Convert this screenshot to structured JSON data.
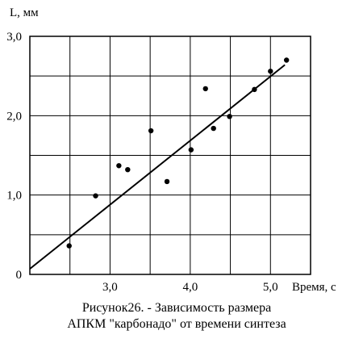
{
  "chart_data": {
    "type": "scatter",
    "title": "",
    "xlabel": "Время, с",
    "ylabel": "L, мм",
    "xlim": [
      2.0,
      5.5
    ],
    "ylim": [
      0.0,
      3.0
    ],
    "x_gridlines": [
      2.5,
      3.0,
      3.5,
      4.0,
      4.5,
      5.0
    ],
    "y_gridlines": [
      0.5,
      1.0,
      1.5,
      2.0,
      2.5
    ],
    "x_ticks": [
      {
        "value": 3.0,
        "label": "3,0"
      },
      {
        "value": 4.0,
        "label": "4,0"
      },
      {
        "value": 5.0,
        "label": "5,0"
      }
    ],
    "y_ticks": [
      {
        "value": 0.0,
        "label": "0"
      },
      {
        "value": 1.0,
        "label": "1,0"
      },
      {
        "value": 2.0,
        "label": "2,0"
      },
      {
        "value": 3.0,
        "label": "3,0"
      }
    ],
    "grid": true,
    "points": [
      {
        "x": 2.49,
        "y": 0.36
      },
      {
        "x": 2.82,
        "y": 0.99
      },
      {
        "x": 3.11,
        "y": 1.37
      },
      {
        "x": 3.22,
        "y": 1.32
      },
      {
        "x": 3.51,
        "y": 1.81
      },
      {
        "x": 3.71,
        "y": 1.17
      },
      {
        "x": 4.01,
        "y": 1.57
      },
      {
        "x": 4.19,
        "y": 2.34
      },
      {
        "x": 4.29,
        "y": 1.84
      },
      {
        "x": 4.49,
        "y": 1.99
      },
      {
        "x": 4.8,
        "y": 2.33
      },
      {
        "x": 5.0,
        "y": 2.56
      },
      {
        "x": 5.2,
        "y": 2.7
      }
    ],
    "fit_line": {
      "x": [
        2.0,
        5.18
      ],
      "y": [
        0.07,
        2.64
      ]
    },
    "colors": {
      "axis": "#000000",
      "grid": "#000000",
      "points": "#000000",
      "fit": "#000000"
    }
  },
  "caption": {
    "line1": "Рисунок26. - Зависимость размера",
    "line2": "АПКМ \"карбонадо\" от времени синтеза"
  }
}
